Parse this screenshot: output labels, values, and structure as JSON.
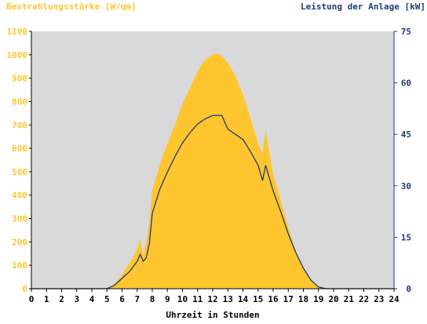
{
  "chart_data": {
    "type": "area",
    "left_axis_title": "Bestrahlungsstärke [W/qm]",
    "right_axis_title": "Leistung der Anlage [kW]",
    "xlabel": "Uhrzeit in Stunden",
    "x_ticks": [
      "0",
      "1",
      "2",
      "3",
      "4",
      "5",
      "6",
      "7",
      "8",
      "9",
      "10",
      "11",
      "12",
      "13",
      "14",
      "15",
      "16",
      "17",
      "18",
      "19",
      "20",
      "21",
      "22",
      "23",
      "24"
    ],
    "xlim": [
      0,
      24
    ],
    "left_ylim": [
      0,
      1100
    ],
    "left_ticks": [
      "0",
      "100",
      "200",
      "300",
      "400",
      "500",
      "600",
      "700",
      "800",
      "900",
      "1000",
      "1100"
    ],
    "right_ylim": [
      0,
      75
    ],
    "right_ticks": [
      "0",
      "15",
      "30",
      "45",
      "60",
      "75"
    ],
    "grid": false,
    "colors": {
      "irradiance": "#ffc52e",
      "power": "#1e3a78",
      "plot_bg": "#d9d9d9",
      "left_axis": "#ffc52e",
      "right_axis": "#1e3a78"
    },
    "series": [
      {
        "name": "Bestrahlungsstärke",
        "axis": "left",
        "style": "area",
        "x": [
          0,
          5.0,
          5.5,
          6.0,
          6.5,
          7.0,
          7.2,
          7.4,
          7.6,
          7.8,
          8.0,
          8.5,
          9.0,
          9.5,
          10.0,
          10.5,
          11.0,
          11.5,
          12.0,
          12.2,
          12.5,
          13.0,
          13.5,
          14.0,
          14.5,
          15.0,
          15.3,
          15.5,
          15.7,
          16.0,
          16.5,
          17.0,
          17.5,
          18.0,
          18.5,
          19.0,
          19.5,
          20.0,
          24
        ],
        "y": [
          0,
          0,
          20,
          60,
          110,
          170,
          210,
          140,
          200,
          280,
          420,
          530,
          620,
          700,
          790,
          860,
          930,
          980,
          1000,
          1005,
          1000,
          965,
          910,
          830,
          730,
          620,
          580,
          680,
          600,
          490,
          380,
          260,
          160,
          90,
          40,
          10,
          0,
          0,
          0
        ]
      },
      {
        "name": "Leistung der Anlage",
        "axis": "right",
        "style": "line",
        "x": [
          0,
          5.0,
          5.5,
          6.0,
          6.5,
          7.0,
          7.2,
          7.4,
          7.6,
          7.8,
          8.0,
          8.5,
          9.0,
          9.5,
          10.0,
          10.5,
          11.0,
          11.5,
          12.0,
          12.3,
          12.6,
          12.8,
          13.0,
          13.5,
          14.0,
          14.5,
          15.0,
          15.3,
          15.5,
          15.7,
          16.0,
          16.5,
          17.0,
          17.5,
          18.0,
          18.5,
          19.0,
          19.5,
          20.0,
          24
        ],
        "y": [
          0,
          0,
          1,
          3,
          5,
          8,
          10,
          8,
          9,
          13,
          22,
          29,
          34,
          38.5,
          42.5,
          45.5,
          48,
          49.5,
          50.5,
          50.5,
          50.5,
          48.5,
          46.5,
          45,
          43.5,
          40,
          36,
          31.5,
          36,
          33,
          28.5,
          22.5,
          16,
          10.5,
          6,
          2.5,
          0.5,
          0,
          0,
          0
        ]
      }
    ]
  }
}
